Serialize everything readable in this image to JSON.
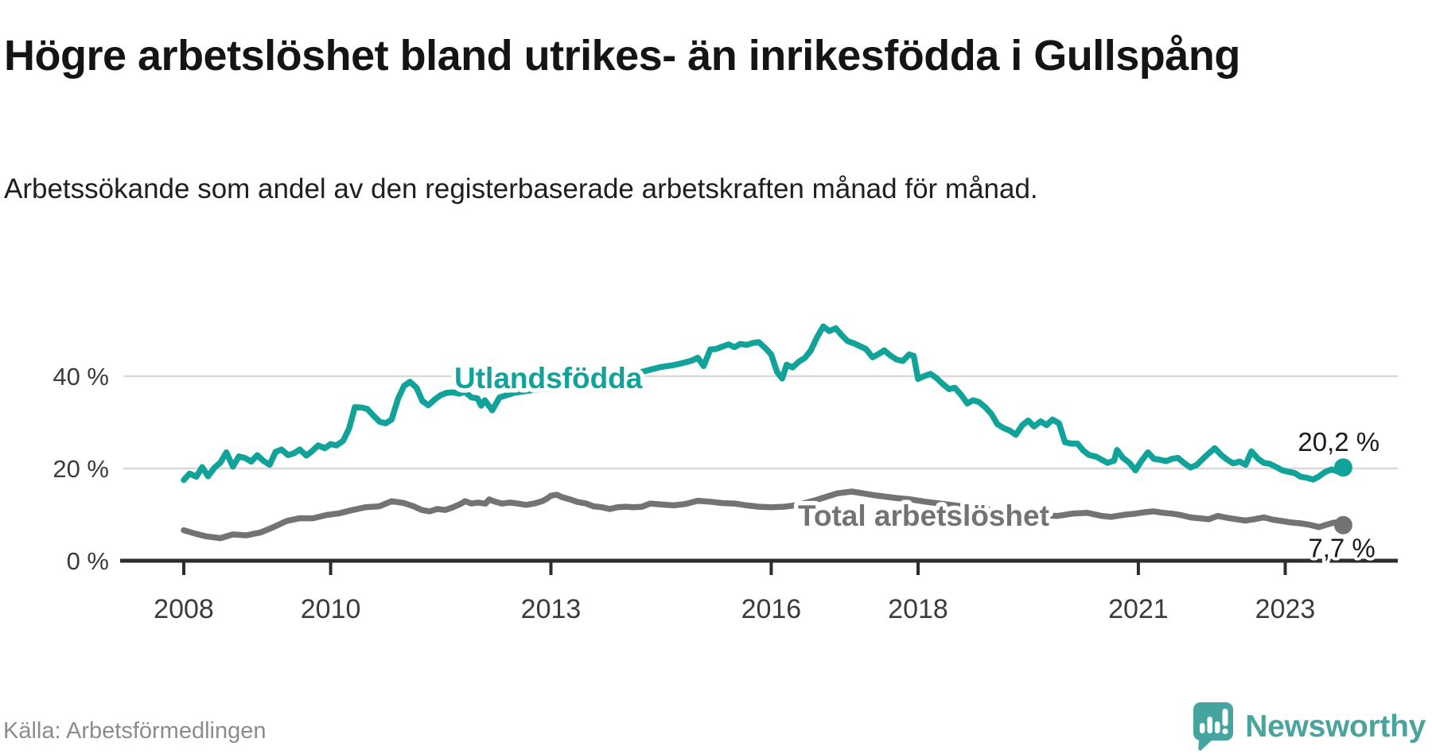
{
  "title": "Högre arbetslöshet bland utrikes- än inrikesfödda i Gullspång",
  "subtitle": "Arbetssökande som andel av den registerbaserade arbetskraften månad för månad.",
  "source": "Källa: Arbetsförmedlingen",
  "logo": {
    "text": "Newsworthy"
  },
  "colors": {
    "foreign_line": "#11a29a",
    "total_line": "#737373",
    "axis": "#2d2d2d",
    "grid": "#d9d9d9",
    "tick_label": "#3b3b3b",
    "value_label": "#1a1a1a",
    "logo_teal": "#4aa39c",
    "background": "#ffffff"
  },
  "chart_data": {
    "type": "line",
    "unit": "percent",
    "title": "",
    "xlabel": "",
    "ylabel": "",
    "x_ticks": [
      2008,
      2010,
      2013,
      2016,
      2018,
      2021,
      2023
    ],
    "x_tick_labels": [
      "2008",
      "2010",
      "2013",
      "2016",
      "2018",
      "2021",
      "2023"
    ],
    "y_ticks": [
      0,
      20,
      40
    ],
    "y_tick_labels": [
      "0 %",
      "20 %",
      "40 %"
    ],
    "xlim": [
      2007.8,
      2024.2
    ],
    "ylim": [
      0,
      54
    ],
    "grid": "horizontal",
    "legend_position": "inline-labels",
    "series": [
      {
        "name": "Utlandsfödda",
        "end_label": "20,2 %",
        "last_value": 20.2,
        "points": [
          [
            2008.0,
            17.5
          ],
          [
            2008.08,
            18.9
          ],
          [
            2008.17,
            18.2
          ],
          [
            2008.25,
            20.3
          ],
          [
            2008.33,
            18.3
          ],
          [
            2008.42,
            20.2
          ],
          [
            2008.5,
            21.3
          ],
          [
            2008.58,
            23.5
          ],
          [
            2008.67,
            20.4
          ],
          [
            2008.75,
            22.6
          ],
          [
            2008.83,
            22.3
          ],
          [
            2008.92,
            21.5
          ],
          [
            2009.0,
            22.9
          ],
          [
            2009.08,
            21.7
          ],
          [
            2009.17,
            20.8
          ],
          [
            2009.25,
            23.6
          ],
          [
            2009.33,
            24.1
          ],
          [
            2009.42,
            22.9
          ],
          [
            2009.5,
            23.3
          ],
          [
            2009.58,
            24.1
          ],
          [
            2009.67,
            22.8
          ],
          [
            2009.75,
            23.8
          ],
          [
            2009.83,
            25.0
          ],
          [
            2009.92,
            24.4
          ],
          [
            2010.0,
            25.3
          ],
          [
            2010.08,
            25.0
          ],
          [
            2010.17,
            26.0
          ],
          [
            2010.25,
            28.6
          ],
          [
            2010.33,
            33.3
          ],
          [
            2010.42,
            33.2
          ],
          [
            2010.5,
            32.9
          ],
          [
            2010.58,
            31.5
          ],
          [
            2010.67,
            30.1
          ],
          [
            2010.75,
            29.8
          ],
          [
            2010.83,
            30.6
          ],
          [
            2010.92,
            35.2
          ],
          [
            2011.0,
            37.9
          ],
          [
            2011.08,
            38.8
          ],
          [
            2011.17,
            37.5
          ],
          [
            2011.25,
            34.6
          ],
          [
            2011.33,
            33.7
          ],
          [
            2011.42,
            35.0
          ],
          [
            2011.5,
            35.9
          ],
          [
            2011.58,
            36.4
          ],
          [
            2011.67,
            36.5
          ],
          [
            2011.75,
            36.2
          ],
          [
            2011.83,
            36.6
          ],
          [
            2011.92,
            35.4
          ],
          [
            2012.0,
            35.2
          ],
          [
            2012.05,
            33.6
          ],
          [
            2012.1,
            34.8
          ],
          [
            2012.2,
            32.6
          ],
          [
            2012.3,
            35.4
          ],
          [
            2012.5,
            36.4
          ],
          [
            2012.75,
            37.0
          ],
          [
            2013.0,
            37.4
          ],
          [
            2013.25,
            37.8
          ],
          [
            2013.5,
            38.3
          ],
          [
            2013.75,
            39.0
          ],
          [
            2014.0,
            40.0
          ],
          [
            2014.25,
            41.0
          ],
          [
            2014.5,
            42.0
          ],
          [
            2014.67,
            42.4
          ],
          [
            2014.83,
            43.0
          ],
          [
            2014.92,
            43.4
          ],
          [
            2015.0,
            44.0
          ],
          [
            2015.08,
            42.2
          ],
          [
            2015.17,
            45.8
          ],
          [
            2015.25,
            45.9
          ],
          [
            2015.33,
            46.4
          ],
          [
            2015.42,
            46.9
          ],
          [
            2015.5,
            46.3
          ],
          [
            2015.58,
            47.0
          ],
          [
            2015.67,
            46.8
          ],
          [
            2015.75,
            47.2
          ],
          [
            2015.83,
            47.4
          ],
          [
            2015.92,
            46.1
          ],
          [
            2016.0,
            44.7
          ],
          [
            2016.08,
            40.9
          ],
          [
            2016.15,
            39.5
          ],
          [
            2016.21,
            42.5
          ],
          [
            2016.29,
            41.9
          ],
          [
            2016.38,
            43.2
          ],
          [
            2016.46,
            44.0
          ],
          [
            2016.54,
            45.6
          ],
          [
            2016.63,
            48.6
          ],
          [
            2016.71,
            50.8
          ],
          [
            2016.79,
            49.8
          ],
          [
            2016.88,
            50.4
          ],
          [
            2016.96,
            48.9
          ],
          [
            2017.04,
            47.6
          ],
          [
            2017.13,
            47.1
          ],
          [
            2017.21,
            46.5
          ],
          [
            2017.29,
            45.9
          ],
          [
            2017.38,
            44.1
          ],
          [
            2017.46,
            44.8
          ],
          [
            2017.54,
            45.6
          ],
          [
            2017.63,
            44.4
          ],
          [
            2017.71,
            43.6
          ],
          [
            2017.79,
            43.3
          ],
          [
            2017.88,
            44.7
          ],
          [
            2017.94,
            44.4
          ],
          [
            2018.0,
            39.4
          ],
          [
            2018.08,
            40.0
          ],
          [
            2018.17,
            40.5
          ],
          [
            2018.25,
            39.6
          ],
          [
            2018.33,
            38.4
          ],
          [
            2018.42,
            37.2
          ],
          [
            2018.5,
            37.5
          ],
          [
            2018.58,
            36.1
          ],
          [
            2018.67,
            34.1
          ],
          [
            2018.75,
            34.8
          ],
          [
            2018.83,
            34.4
          ],
          [
            2018.92,
            33.2
          ],
          [
            2019.0,
            31.8
          ],
          [
            2019.08,
            29.6
          ],
          [
            2019.17,
            28.7
          ],
          [
            2019.25,
            28.2
          ],
          [
            2019.33,
            27.3
          ],
          [
            2019.42,
            29.4
          ],
          [
            2019.5,
            30.4
          ],
          [
            2019.58,
            29.1
          ],
          [
            2019.67,
            30.2
          ],
          [
            2019.75,
            29.4
          ],
          [
            2019.83,
            30.6
          ],
          [
            2019.92,
            29.8
          ],
          [
            2020.0,
            25.7
          ],
          [
            2020.08,
            25.4
          ],
          [
            2020.17,
            25.4
          ],
          [
            2020.25,
            23.9
          ],
          [
            2020.33,
            22.9
          ],
          [
            2020.42,
            22.6
          ],
          [
            2020.5,
            21.9
          ],
          [
            2020.58,
            21.2
          ],
          [
            2020.67,
            21.7
          ],
          [
            2020.71,
            24.0
          ],
          [
            2020.79,
            22.3
          ],
          [
            2020.88,
            21.2
          ],
          [
            2020.96,
            19.6
          ],
          [
            2021.04,
            21.6
          ],
          [
            2021.13,
            23.5
          ],
          [
            2021.21,
            22.1
          ],
          [
            2021.29,
            21.9
          ],
          [
            2021.38,
            21.6
          ],
          [
            2021.46,
            22.1
          ],
          [
            2021.54,
            22.3
          ],
          [
            2021.63,
            21.1
          ],
          [
            2021.71,
            20.2
          ],
          [
            2021.79,
            20.7
          ],
          [
            2021.88,
            22.1
          ],
          [
            2021.96,
            23.3
          ],
          [
            2022.04,
            24.4
          ],
          [
            2022.13,
            22.9
          ],
          [
            2022.21,
            21.9
          ],
          [
            2022.29,
            21.1
          ],
          [
            2022.38,
            21.5
          ],
          [
            2022.46,
            20.8
          ],
          [
            2022.54,
            23.7
          ],
          [
            2022.63,
            22.1
          ],
          [
            2022.71,
            21.2
          ],
          [
            2022.79,
            21.0
          ],
          [
            2022.88,
            20.3
          ],
          [
            2022.96,
            19.6
          ],
          [
            2023.04,
            19.3
          ],
          [
            2023.13,
            19.0
          ],
          [
            2023.21,
            18.2
          ],
          [
            2023.29,
            18.0
          ],
          [
            2023.38,
            17.6
          ],
          [
            2023.46,
            18.3
          ],
          [
            2023.54,
            19.2
          ],
          [
            2023.63,
            19.8
          ],
          [
            2023.71,
            19.4
          ],
          [
            2023.79,
            20.2
          ]
        ]
      },
      {
        "name": "Total arbetslöshet",
        "end_label": "7,7 %",
        "last_value": 7.7,
        "points": [
          [
            2008.0,
            6.6
          ],
          [
            2008.13,
            6.0
          ],
          [
            2008.3,
            5.3
          ],
          [
            2008.5,
            4.9
          ],
          [
            2008.67,
            5.7
          ],
          [
            2008.85,
            5.5
          ],
          [
            2009.04,
            6.1
          ],
          [
            2009.21,
            7.2
          ],
          [
            2009.4,
            8.6
          ],
          [
            2009.58,
            9.2
          ],
          [
            2009.76,
            9.2
          ],
          [
            2009.94,
            9.9
          ],
          [
            2010.12,
            10.3
          ],
          [
            2010.3,
            11.0
          ],
          [
            2010.48,
            11.6
          ],
          [
            2010.66,
            11.8
          ],
          [
            2010.83,
            12.9
          ],
          [
            2011.0,
            12.5
          ],
          [
            2011.13,
            11.8
          ],
          [
            2011.24,
            11.0
          ],
          [
            2011.35,
            10.7
          ],
          [
            2011.45,
            11.2
          ],
          [
            2011.56,
            11.0
          ],
          [
            2011.67,
            11.6
          ],
          [
            2011.78,
            12.4
          ],
          [
            2011.83,
            12.9
          ],
          [
            2011.92,
            12.4
          ],
          [
            2012.0,
            12.6
          ],
          [
            2012.11,
            12.4
          ],
          [
            2012.16,
            13.3
          ],
          [
            2012.22,
            12.9
          ],
          [
            2012.33,
            12.4
          ],
          [
            2012.44,
            12.6
          ],
          [
            2012.55,
            12.4
          ],
          [
            2012.66,
            12.1
          ],
          [
            2012.77,
            12.4
          ],
          [
            2012.88,
            12.9
          ],
          [
            2012.95,
            13.5
          ],
          [
            2013.0,
            14.1
          ],
          [
            2013.08,
            14.3
          ],
          [
            2013.15,
            13.8
          ],
          [
            2013.26,
            13.3
          ],
          [
            2013.37,
            12.7
          ],
          [
            2013.48,
            12.4
          ],
          [
            2013.58,
            11.8
          ],
          [
            2013.69,
            11.6
          ],
          [
            2013.8,
            11.2
          ],
          [
            2013.91,
            11.6
          ],
          [
            2014.02,
            11.7
          ],
          [
            2014.13,
            11.6
          ],
          [
            2014.24,
            11.7
          ],
          [
            2014.35,
            12.4
          ],
          [
            2014.5,
            12.2
          ],
          [
            2014.67,
            12.0
          ],
          [
            2014.83,
            12.3
          ],
          [
            2015.0,
            13.0
          ],
          [
            2015.17,
            12.8
          ],
          [
            2015.33,
            12.5
          ],
          [
            2015.5,
            12.4
          ],
          [
            2015.67,
            12.0
          ],
          [
            2015.83,
            11.7
          ],
          [
            2016.0,
            11.6
          ],
          [
            2016.17,
            11.7
          ],
          [
            2016.33,
            12.0
          ],
          [
            2016.6,
            13.1
          ],
          [
            2016.9,
            14.6
          ],
          [
            2017.1,
            15.0
          ],
          [
            2017.4,
            14.2
          ],
          [
            2017.7,
            13.6
          ],
          [
            2017.9,
            13.3
          ],
          [
            2018.1,
            12.8
          ],
          [
            2018.4,
            12.2
          ],
          [
            2018.7,
            11.6
          ],
          [
            2019.0,
            11.0
          ],
          [
            2019.3,
            10.4
          ],
          [
            2019.6,
            10.0
          ],
          [
            2019.9,
            9.7
          ],
          [
            2020.1,
            10.2
          ],
          [
            2020.3,
            10.4
          ],
          [
            2020.5,
            9.7
          ],
          [
            2020.63,
            9.5
          ],
          [
            2020.71,
            9.7
          ],
          [
            2020.83,
            10.0
          ],
          [
            2020.96,
            10.2
          ],
          [
            2021.08,
            10.5
          ],
          [
            2021.21,
            10.7
          ],
          [
            2021.33,
            10.4
          ],
          [
            2021.46,
            10.2
          ],
          [
            2021.58,
            9.9
          ],
          [
            2021.71,
            9.4
          ],
          [
            2021.83,
            9.2
          ],
          [
            2021.96,
            9.0
          ],
          [
            2022.08,
            9.7
          ],
          [
            2022.21,
            9.3
          ],
          [
            2022.33,
            9.0
          ],
          [
            2022.46,
            8.7
          ],
          [
            2022.58,
            9.0
          ],
          [
            2022.71,
            9.4
          ],
          [
            2022.83,
            8.9
          ],
          [
            2022.96,
            8.6
          ],
          [
            2023.08,
            8.3
          ],
          [
            2023.21,
            8.1
          ],
          [
            2023.33,
            7.8
          ],
          [
            2023.46,
            7.3
          ],
          [
            2023.58,
            7.9
          ],
          [
            2023.67,
            8.3
          ],
          [
            2023.79,
            7.7
          ]
        ]
      }
    ]
  }
}
